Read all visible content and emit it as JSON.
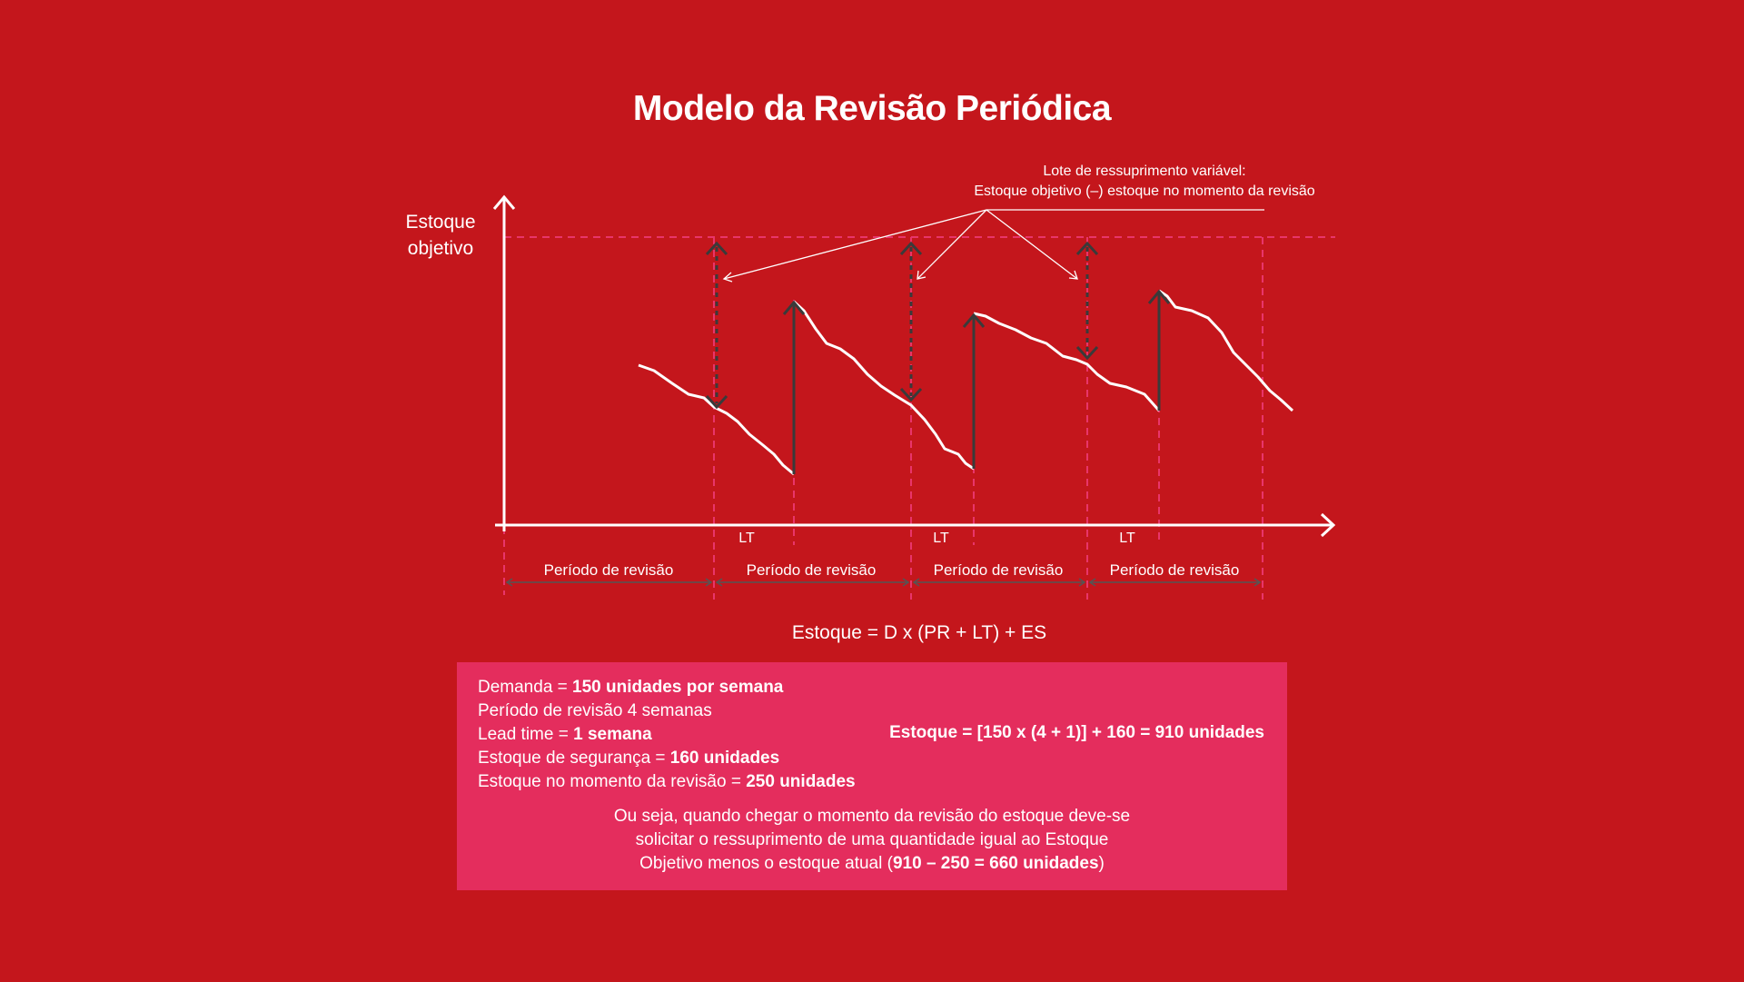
{
  "title": "Modelo da Revisão Periódica",
  "annotation": {
    "line1": "Lote de ressuprimento variável:",
    "line2": "Estoque objetivo (–) estoque no momento da revisão"
  },
  "y_axis_label": {
    "line1": "Estoque",
    "line2": "objetivo"
  },
  "lt_labels": [
    "LT",
    "LT",
    "LT"
  ],
  "period_labels": [
    "Período de revisão",
    "Período de revisão",
    "Período de revisão",
    "Período de revisão"
  ],
  "formula": "Estoque = D x (PR + LT)  +  ES",
  "facts": [
    {
      "label": "Demanda = ",
      "value": "150 unidades por semana"
    },
    {
      "label": "Período de revisão 4 semanas",
      "value": ""
    },
    {
      "label": "Lead time = ",
      "value": "1 semana"
    },
    {
      "label": "Estoque de segurança = ",
      "value": "160 unidades"
    },
    {
      "label": "Estoque no momento da revisão = ",
      "value": "250 unidades"
    }
  ],
  "calculation": "Estoque = [150 x (4  +  1)]  +  160  =  910 unidades",
  "conclusion": {
    "line1": "Ou seja, quando chegar o momento da revisão do estoque deve-se",
    "line2": "solicitar o ressuprimento de uma quantidade igual ao Estoque",
    "line3_prefix": "Objetivo menos o estoque atual (",
    "line3_bold": "910 – 250 = 660 unidades",
    "line3_suffix": ")"
  },
  "colors": {
    "background": "#c4161c",
    "box": "#e42d5d",
    "dashed_guide": "#e8356a",
    "order_arrow": "#3a3a3a",
    "text": "#ffffff"
  }
}
